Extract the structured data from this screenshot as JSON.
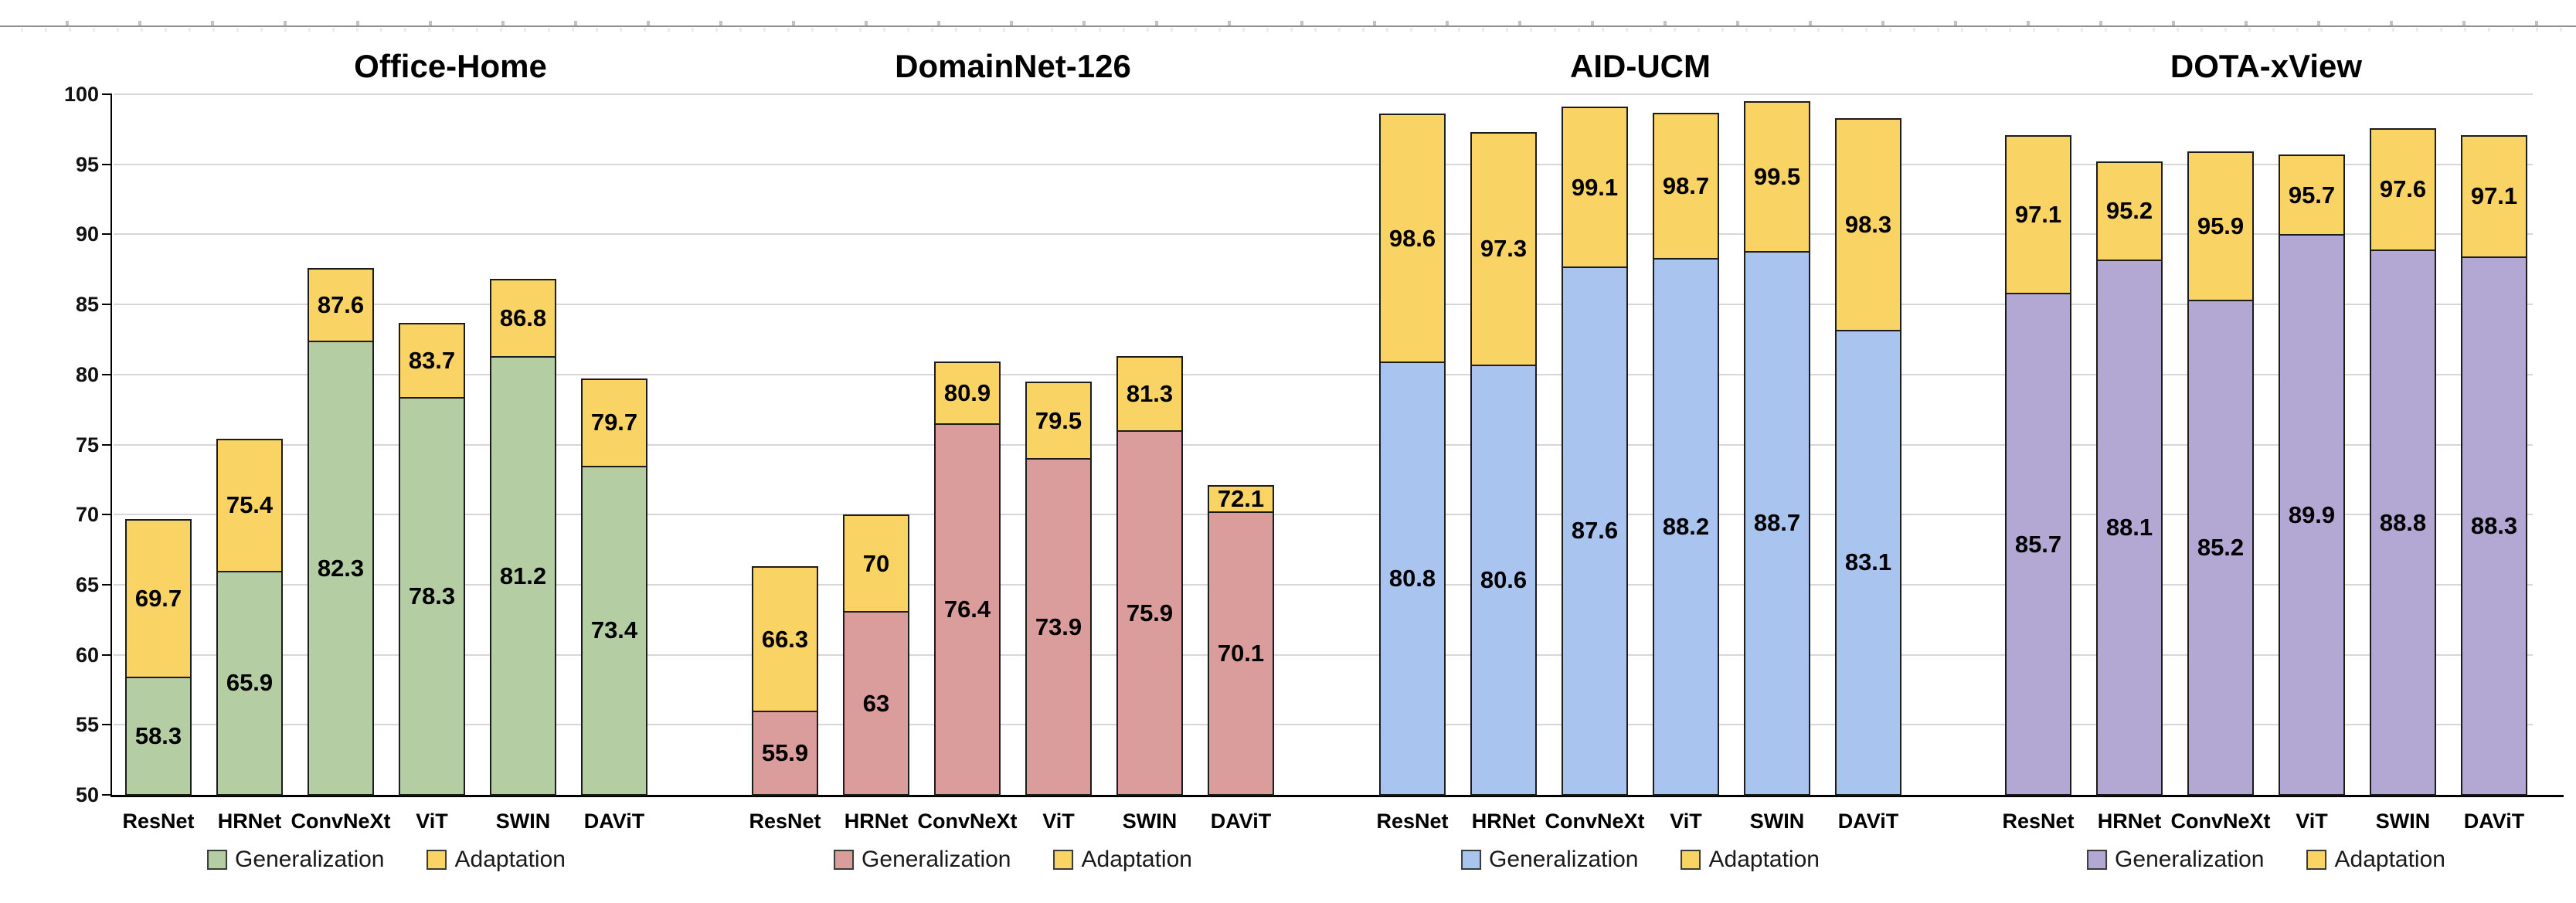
{
  "figure": {
    "background": "#ffffff",
    "ruler_line_color": "#8f8f8f"
  },
  "chart_data": {
    "type": "bar",
    "stacked": true,
    "categories": [
      "ResNet",
      "HRNet",
      "ConvNeXt",
      "ViT",
      "SWIN",
      "DAViT"
    ],
    "ylim": [
      50,
      100
    ],
    "ytick_step": 5,
    "ytick_labels": [
      "50",
      "55",
      "60",
      "65",
      "70",
      "75",
      "80",
      "85",
      "90",
      "95",
      "100"
    ],
    "grid": true,
    "gridline_color": "#d7d7d7",
    "axis_color": "#000000",
    "bar_border_color": "#1c1c1c",
    "adaptation_color": "#fad365",
    "legend": [
      "Generalization",
      "Adaptation"
    ],
    "legend_position": "bottom-per-panel",
    "panels": [
      {
        "title": "Office-Home",
        "color": "#b5cda2",
        "generalization": [
          58.3,
          65.9,
          82.3,
          78.3,
          81.2,
          73.4
        ],
        "generalization_labels": [
          "58.3",
          "65.9",
          "82.3",
          "78.3",
          "81.2",
          "73.4"
        ],
        "adaptation_total": [
          69.7,
          75.4,
          87.6,
          83.7,
          86.8,
          79.7
        ],
        "adaptation_labels": [
          "69.7",
          "75.4",
          "87.6",
          "83.7",
          "86.8",
          "79.7"
        ]
      },
      {
        "title": "DomainNet-126",
        "color": "#db9c9c",
        "generalization": [
          55.9,
          63,
          76.4,
          73.9,
          75.9,
          70.1
        ],
        "generalization_labels": [
          "55.9",
          "63",
          "76.4",
          "73.9",
          "75.9",
          "70.1"
        ],
        "adaptation_total": [
          66.3,
          70,
          80.9,
          79.5,
          81.3,
          72.1
        ],
        "adaptation_labels": [
          "66.3",
          "70",
          "80.9",
          "79.5",
          "81.3",
          "72.1"
        ]
      },
      {
        "title": "AID-UCM",
        "color": "#a9c4ee",
        "generalization": [
          80.8,
          80.6,
          87.6,
          88.2,
          88.7,
          83.1
        ],
        "generalization_labels": [
          "80.8",
          "80.6",
          "87.6",
          "88.2",
          "88.7",
          "83.1"
        ],
        "adaptation_total": [
          98.6,
          97.3,
          99.1,
          98.7,
          99.5,
          98.3
        ],
        "adaptation_labels": [
          "98.6",
          "97.3",
          "99.1",
          "98.7",
          "99.5",
          "98.3"
        ]
      },
      {
        "title": "DOTA-xView",
        "color": "#b2a8d3",
        "generalization": [
          85.7,
          88.1,
          85.2,
          89.9,
          88.8,
          88.3
        ],
        "generalization_labels": [
          "85.7",
          "88.1",
          "85.2",
          "89.9",
          "88.8",
          "88.3"
        ],
        "adaptation_total": [
          97.1,
          95.2,
          95.9,
          95.7,
          97.6,
          97.1
        ],
        "adaptation_labels": [
          "97.1",
          "95.2",
          "95.9",
          "95.7",
          "97.6",
          "97.1"
        ]
      }
    ]
  }
}
